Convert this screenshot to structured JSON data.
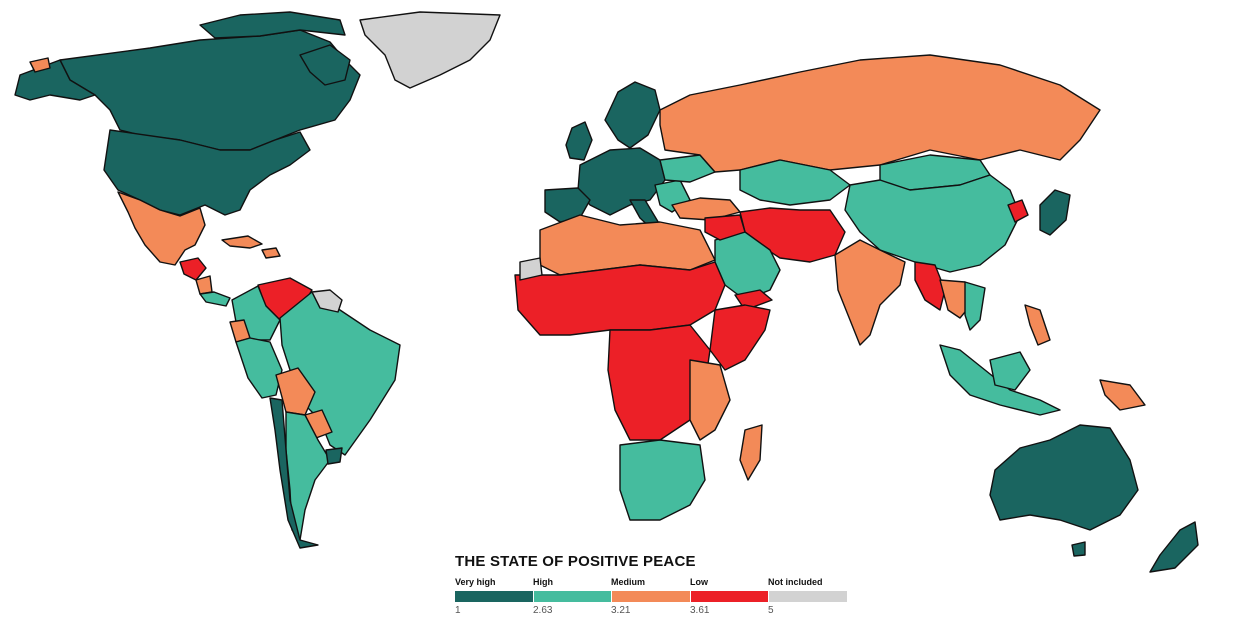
{
  "legend": {
    "title": "THE STATE OF POSITIVE PEACE",
    "categories": [
      {
        "label": "Very high",
        "color": "#1a6560",
        "threshold": "1"
      },
      {
        "label": "High",
        "color": "#45bc9e",
        "threshold": "2.63"
      },
      {
        "label": "Medium",
        "color": "#f38a58",
        "threshold": "3.21"
      },
      {
        "label": "Low",
        "color": "#ec2027",
        "threshold": "3.61"
      },
      {
        "label": "Not included",
        "color": "#d2d2d2",
        "threshold": "5"
      }
    ]
  },
  "map": {
    "projection": "world",
    "ocean_color": "#ffffff",
    "border_color": "#111111"
  }
}
